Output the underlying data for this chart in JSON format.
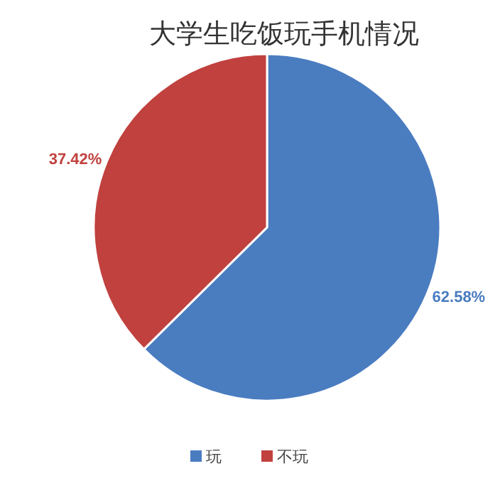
{
  "chart_data": {
    "type": "pie",
    "title": "大学生吃饭玩手机情况",
    "categories": [
      "玩",
      "不玩"
    ],
    "values": [
      62.58,
      37.42
    ],
    "colors": [
      "#4a7cc0",
      "#c0413e"
    ],
    "value_labels": [
      "62.58%",
      "37.42%"
    ],
    "legend": "bottom"
  }
}
